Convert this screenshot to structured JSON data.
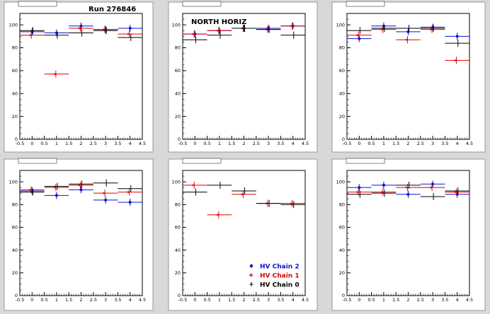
{
  "page": {
    "run_label": "Run 276846",
    "north_label": "NORTH HORIZ"
  },
  "colors": {
    "background": "#d8d8d8",
    "frame": "#ffffff",
    "axis": "#000000",
    "chain2": "#0a14d2",
    "chain1": "#e00000",
    "chain0": "#000000"
  },
  "legend": {
    "entries": [
      "HV Chain 2",
      "HV Chain 1",
      "HV Chain 0"
    ]
  },
  "chart_data": [
    {
      "type": "scatter",
      "title": "",
      "xlim": [
        -0.5,
        4.5
      ],
      "ylim": [
        0,
        110
      ],
      "x_ticks": [
        -0.5,
        0,
        0.5,
        1,
        1.5,
        2,
        2.5,
        3,
        3.5,
        4,
        4.5
      ],
      "y_ticks": [
        0,
        20,
        40,
        60,
        80,
        100
      ],
      "x": [
        0,
        1,
        2,
        3,
        4
      ],
      "series": [
        {
          "values": [
            94,
            93,
            99,
            96,
            97
          ]
        },
        {
          "values": [
            91,
            57,
            97,
            96,
            92
          ]
        },
        {
          "values": [
            95,
            91,
            93,
            95,
            89
          ]
        }
      ]
    },
    {
      "type": "scatter",
      "title": "",
      "xlim": [
        -0.5,
        4.5
      ],
      "ylim": [
        0,
        110
      ],
      "x_ticks": [
        -0.5,
        0,
        0.5,
        1,
        1.5,
        2,
        2.5,
        3,
        3.5,
        4,
        4.5
      ],
      "y_ticks": [
        0,
        20,
        40,
        60,
        80,
        100
      ],
      "x": [
        0,
        1,
        2,
        3,
        4
      ],
      "series": [
        {
          "values": [
            92,
            95,
            97,
            97,
            99
          ]
        },
        {
          "values": [
            92,
            95,
            97,
            96,
            99
          ]
        },
        {
          "values": [
            87,
            91,
            97,
            96,
            91
          ]
        }
      ]
    },
    {
      "type": "scatter",
      "title": "",
      "xlim": [
        -0.5,
        4.5
      ],
      "ylim": [
        0,
        110
      ],
      "x_ticks": [
        -0.5,
        0,
        0.5,
        1,
        1.5,
        2,
        2.5,
        3,
        3.5,
        4,
        4.5
      ],
      "y_ticks": [
        0,
        20,
        40,
        60,
        80,
        100
      ],
      "x": [
        0,
        1,
        2,
        3,
        4
      ],
      "series": [
        {
          "values": [
            88,
            99,
            94,
            98,
            90
          ]
        },
        {
          "values": [
            91,
            96,
            87,
            96,
            69
          ]
        },
        {
          "values": [
            95,
            97,
            97,
            97,
            84
          ]
        }
      ]
    },
    {
      "type": "scatter",
      "title": "",
      "xlim": [
        -0.5,
        4.5
      ],
      "ylim": [
        0,
        110
      ],
      "x_ticks": [
        -0.5,
        0,
        0.5,
        1,
        1.5,
        2,
        2.5,
        3,
        3.5,
        4,
        4.5
      ],
      "y_ticks": [
        0,
        20,
        40,
        60,
        80,
        100
      ],
      "x": [
        0,
        1,
        2,
        3,
        4
      ],
      "series": [
        {
          "values": [
            92,
            88,
            93,
            84,
            82
          ]
        },
        {
          "values": [
            93,
            95,
            97,
            90,
            91
          ]
        },
        {
          "values": [
            91,
            96,
            98,
            99,
            94
          ]
        }
      ]
    },
    {
      "type": "scatter",
      "title": "",
      "xlim": [
        -0.5,
        4.5
      ],
      "ylim": [
        0,
        110
      ],
      "x_ticks": [
        -0.5,
        0,
        0.5,
        1,
        1.5,
        2,
        2.5,
        3,
        3.5,
        4,
        4.5
      ],
      "y_ticks": [
        0,
        20,
        40,
        60,
        80,
        100
      ],
      "x": [
        0,
        1,
        2,
        3,
        4
      ],
      "series": [
        {
          "name": "HV Chain 2",
          "values": [
            null,
            null,
            null,
            null,
            null
          ]
        },
        {
          "name": "HV Chain 1",
          "values": [
            97,
            71,
            89,
            81,
            81
          ]
        },
        {
          "name": "HV Chain 0",
          "values": [
            91,
            97,
            92,
            81,
            80
          ]
        }
      ]
    },
    {
      "type": "scatter",
      "title": "",
      "xlim": [
        -0.5,
        4.5
      ],
      "ylim": [
        0,
        110
      ],
      "x_ticks": [
        -0.5,
        0,
        0.5,
        1,
        1.5,
        2,
        2.5,
        3,
        3.5,
        4,
        4.5
      ],
      "y_ticks": [
        0,
        20,
        40,
        60,
        80,
        100
      ],
      "x": [
        0,
        1,
        2,
        3,
        4
      ],
      "series": [
        {
          "values": [
            95,
            97,
            89,
            98,
            89
          ]
        },
        {
          "values": [
            91,
            91,
            95,
            95,
            91
          ]
        },
        {
          "values": [
            89,
            90,
            97,
            87,
            92
          ]
        }
      ]
    }
  ]
}
